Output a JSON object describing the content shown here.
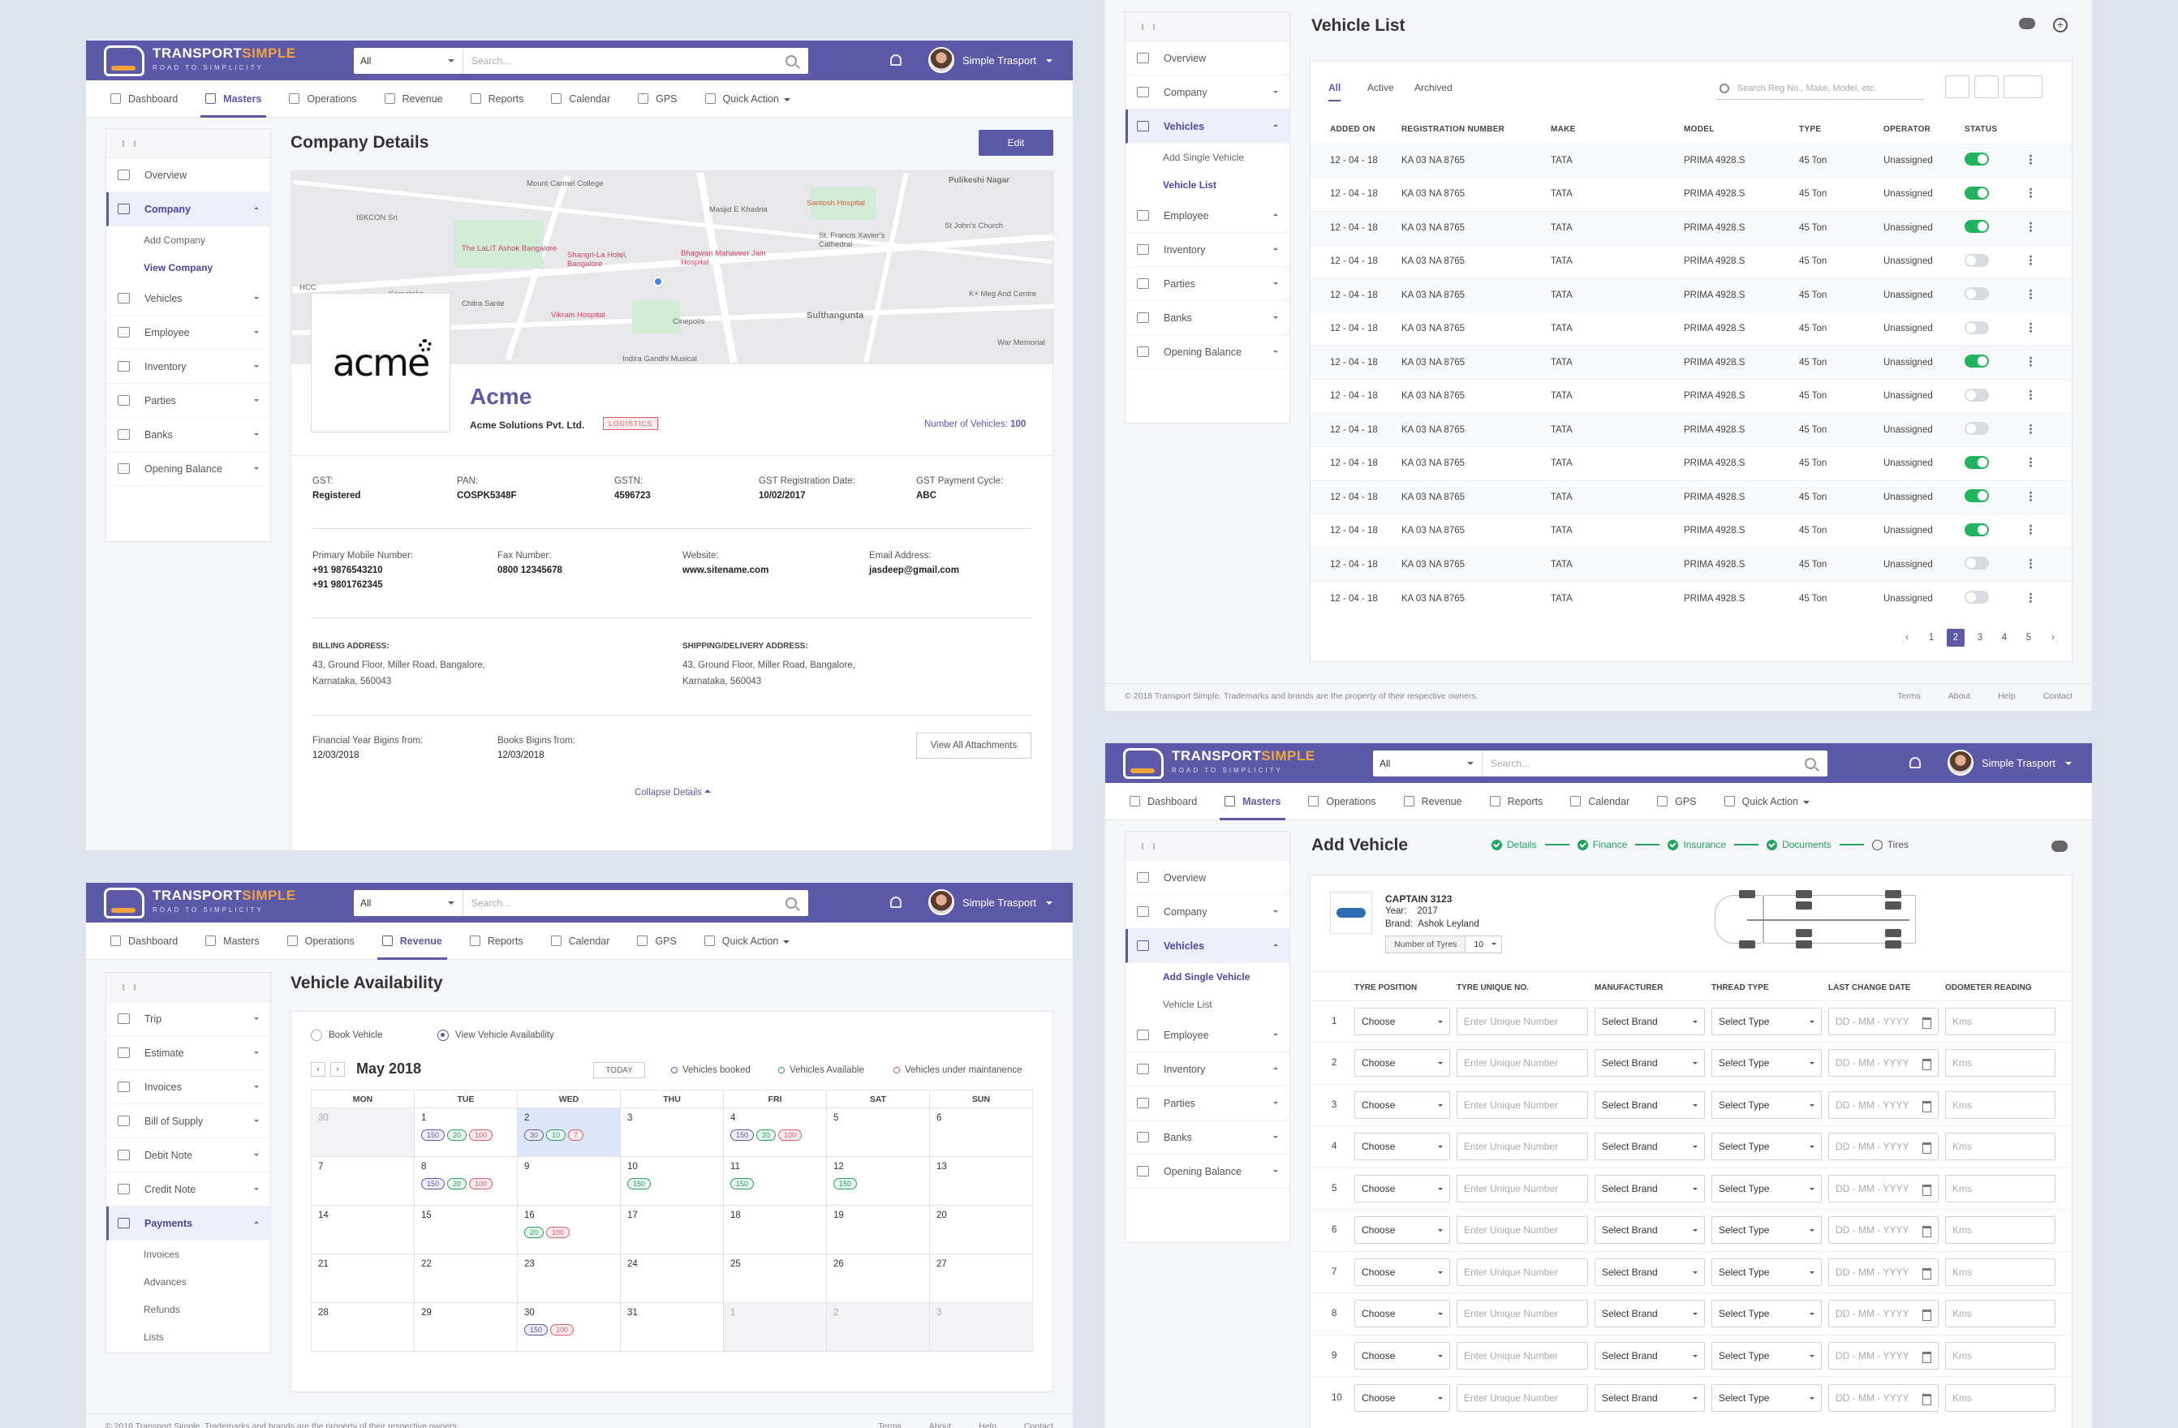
{
  "brand": {
    "name1": "TRANSPORT",
    "name2": "SIMPLE",
    "tagline": "ROAD TO SIMPLICITY"
  },
  "header": {
    "search_select": "All",
    "search_placeholder": "Search...",
    "user": "Simple Trasport"
  },
  "nav": {
    "dashboard": "Dashboard",
    "masters": "Masters",
    "operations": "Operations",
    "revenue": "Revenue",
    "reports": "Reports",
    "calendar": "Calendar",
    "gps": "GPS",
    "quick_action": "Quick Action"
  },
  "masters_sidebar": {
    "overview": "Overview",
    "company": "Company",
    "add_company": "Add Company",
    "view_company": "View Company",
    "vehicles": "Vehicles",
    "add_single_vehicle": "Add Single Vehicle",
    "vehicle_list": "Vehicle List",
    "employee": "Employee",
    "inventory": "Inventory",
    "parties": "Parties",
    "banks": "Banks",
    "opening_balance": "Opening Balance"
  },
  "company": {
    "title": "Company Details",
    "edit": "Edit",
    "logo_text": "acme",
    "name": "Acme",
    "legal_name": "Acme Solutions Pvt. Ltd.",
    "tag": "LOGISTICS",
    "vehicles_label": "Number of Vehicles:",
    "vehicles_value": "100",
    "gst_label": "GST:",
    "gst": "Registered",
    "pan_label": "PAN:",
    "pan": "COSPK5348F",
    "gstn_label": "GSTN:",
    "gstn": "4596723",
    "gst_reg_label": "GST Registration Date:",
    "gst_reg": "10/02/2017",
    "gst_cycle_label": "GST Payment Cycle:",
    "gst_cycle": "ABC",
    "mobile_label": "Primary Mobile Number:",
    "mobile1": "+91 9876543210",
    "mobile2": "+91 9801762345",
    "fax_label": "Fax Number:",
    "fax": "0800 12345678",
    "web_label": "Website:",
    "web": "www.sitename.com",
    "email_label": "Email Address:",
    "email": "jasdeep@gmail.com",
    "billing_label": "BILLING ADDRESS:",
    "billing1": "43, Ground Floor, Miller Road, Bangalore,",
    "billing2": "Karnataka, 560043",
    "shipping_label": "SHIPPING/DELIVERY ADDRESS:",
    "shipping1": "43, Ground Floor, Miller Road, Bangalore,",
    "shipping2": "Karnataka, 560043",
    "fy_label": "Financial Year Bigins from:",
    "fy": "12/03/2018",
    "books_label": "Books Bigins from:",
    "books": "12/03/2018",
    "attachments": "View All Attachments",
    "collapse": "Collapse Details",
    "map_labels": [
      "Pulikeshi Nagar",
      "Masjid E Khadria",
      "Santosh Hospital",
      "Mount Carmel College",
      "ISKCON Sri",
      "The LaLiT Ashok Bangalore",
      "Shangri-La Hotel, Bangalore",
      "Bhagwan Mahaveer Jain Hospital",
      "St. Francis Xavier's Cathedral",
      "St John's Church",
      "Karnataka",
      "Chitra Sante",
      "Vikram Hospital",
      "Cinepolis",
      "Sulthangunta",
      "K+ Meg And Centre",
      "War Memorial",
      "Indira Gandhi Musical",
      "HCC"
    ]
  },
  "vehicle_list": {
    "title": "Vehicle List",
    "tabs": [
      "All",
      "Active",
      "Archived"
    ],
    "search_placeholder": "Search Reg No., Make, Model, etc.",
    "columns": [
      "ADDED ON",
      "REGISTRATION NUMBER",
      "MAKE",
      "MODEL",
      "TYPE",
      "OPERATOR",
      "STATUS"
    ],
    "rows": [
      {
        "date": "12 - 04 - 18",
        "reg": "KA 03 NA 8765",
        "make": "TATA",
        "model": "PRIMA 4928.S",
        "type": "45 Ton",
        "op": "Unassigned",
        "on": true
      },
      {
        "date": "12 - 04 - 18",
        "reg": "KA 03 NA 8765",
        "make": "TATA",
        "model": "PRIMA 4928.S",
        "type": "45 Ton",
        "op": "Unassigned",
        "on": true
      },
      {
        "date": "12 - 04 - 18",
        "reg": "KA 03 NA 8765",
        "make": "TATA",
        "model": "PRIMA 4928.S",
        "type": "45 Ton",
        "op": "Unassigned",
        "on": true
      },
      {
        "date": "12 - 04 - 18",
        "reg": "KA 03 NA 8765",
        "make": "TATA",
        "model": "PRIMA 4928.S",
        "type": "45 Ton",
        "op": "Unassigned",
        "on": false
      },
      {
        "date": "12 - 04 - 18",
        "reg": "KA 03 NA 8765",
        "make": "TATA",
        "model": "PRIMA 4928.S",
        "type": "45 Ton",
        "op": "Unassigned",
        "on": false
      },
      {
        "date": "12 - 04 - 18",
        "reg": "KA 03 NA 8765",
        "make": "TATA",
        "model": "PRIMA 4928.S",
        "type": "45 Ton",
        "op": "Unassigned",
        "on": false
      },
      {
        "date": "12 - 04 - 18",
        "reg": "KA 03 NA 8765",
        "make": "TATA",
        "model": "PRIMA 4928.S",
        "type": "45 Ton",
        "op": "Unassigned",
        "on": true
      },
      {
        "date": "12 - 04 - 18",
        "reg": "KA 03 NA 8765",
        "make": "TATA",
        "model": "PRIMA 4928.S",
        "type": "45 Ton",
        "op": "Unassigned",
        "on": false
      },
      {
        "date": "12 - 04 - 18",
        "reg": "KA 03 NA 8765",
        "make": "TATA",
        "model": "PRIMA 4928.S",
        "type": "45 Ton",
        "op": "Unassigned",
        "on": false
      },
      {
        "date": "12 - 04 - 18",
        "reg": "KA 03 NA 8765",
        "make": "TATA",
        "model": "PRIMA 4928.S",
        "type": "45 Ton",
        "op": "Unassigned",
        "on": true
      },
      {
        "date": "12 - 04 - 18",
        "reg": "KA 03 NA 8765",
        "make": "TATA",
        "model": "PRIMA 4928.S",
        "type": "45 Ton",
        "op": "Unassigned",
        "on": true
      },
      {
        "date": "12 - 04 - 18",
        "reg": "KA 03 NA 8765",
        "make": "TATA",
        "model": "PRIMA 4928.S",
        "type": "45 Ton",
        "op": "Unassigned",
        "on": true
      },
      {
        "date": "12 - 04 - 18",
        "reg": "KA 03 NA 8765",
        "make": "TATA",
        "model": "PRIMA 4928.S",
        "type": "45 Ton",
        "op": "Unassigned",
        "on": false
      },
      {
        "date": "12 - 04 - 18",
        "reg": "KA 03 NA 8765",
        "make": "TATA",
        "model": "PRIMA 4928.S",
        "type": "45 Ton",
        "op": "Unassigned",
        "on": false
      }
    ],
    "pages": [
      "‹",
      "1",
      "2",
      "3",
      "4",
      "5",
      "›"
    ],
    "current_page": "2"
  },
  "footer": {
    "copyright": "© 2018 Transport Simple. Trademarks and brands are the property of their respective owners.",
    "links": [
      "Terms",
      "About",
      "Help",
      "Contact"
    ]
  },
  "revenue_sidebar": {
    "trip": "Trip",
    "estimate": "Estimate",
    "invoices": "Invoices",
    "bill_of_supply": "Bill of Supply",
    "debit_note": "Debit Note",
    "credit_note": "Credit Note",
    "payments": "Payments",
    "sub_invoices": "Invoices",
    "advances": "Advances",
    "refunds": "Refunds",
    "lists": "Lists"
  },
  "availability": {
    "title": "Vehicle Availability",
    "book": "Book Vehicle",
    "view": "View Vehicle Availability",
    "month": "May 2018",
    "today": "TODAY",
    "legend_booked": "Vehicles booked",
    "legend_available": "Vehicles Available",
    "legend_maint": "Vehicles under maintanence",
    "weekdays": [
      "MON",
      "TUE",
      "WED",
      "THU",
      "FRI",
      "SAT",
      "SUN"
    ],
    "weeks": [
      [
        {
          "d": "30",
          "o": true
        },
        {
          "d": "1",
          "p": [
            "150",
            "20",
            "100"
          ]
        },
        {
          "d": "2",
          "t": true,
          "p": [
            "30",
            "10",
            "7"
          ]
        },
        {
          "d": "3"
        },
        {
          "d": "4",
          "p": [
            "150",
            "20",
            "100"
          ]
        },
        {
          "d": "5"
        },
        {
          "d": "6"
        }
      ],
      [
        {
          "d": "7"
        },
        {
          "d": "8",
          "p": [
            "150",
            "20",
            "100"
          ]
        },
        {
          "d": "9"
        },
        {
          "d": "10",
          "p": [
            "",
            "150",
            ""
          ]
        },
        {
          "d": "11",
          "p": [
            "",
            "150",
            ""
          ]
        },
        {
          "d": "12",
          "p": [
            "",
            "150",
            ""
          ]
        },
        {
          "d": "13"
        }
      ],
      [
        {
          "d": "14"
        },
        {
          "d": "15"
        },
        {
          "d": "16",
          "p": [
            "",
            "20",
            "100"
          ]
        },
        {
          "d": "17"
        },
        {
          "d": "18"
        },
        {
          "d": "19"
        },
        {
          "d": "20"
        }
      ],
      [
        {
          "d": "21"
        },
        {
          "d": "22"
        },
        {
          "d": "23"
        },
        {
          "d": "24"
        },
        {
          "d": "25"
        },
        {
          "d": "26"
        },
        {
          "d": "27"
        }
      ],
      [
        {
          "d": "28"
        },
        {
          "d": "29"
        },
        {
          "d": "30",
          "p": [
            "150",
            "",
            "100"
          ]
        },
        {
          "d": "31"
        },
        {
          "d": "1",
          "o": true
        },
        {
          "d": "2",
          "o": true
        },
        {
          "d": "3",
          "o": true
        }
      ]
    ]
  },
  "add_vehicle": {
    "title": "Add Vehicle",
    "steps": [
      "Details",
      "Finance",
      "Insurance",
      "Documents",
      "Tires"
    ],
    "vehicle_name": "CAPTAIN 3123",
    "year_label": "Year:",
    "year": "2017",
    "brand_label": "Brand:",
    "brand": "Ashok Leyland",
    "tyres_label": "Number of Tyres",
    "tyres": "10",
    "columns": [
      "TYRE POSITION",
      "TYRE UNIQUE NO.",
      "MANUFACTURER",
      "THREAD TYPE",
      "LAST CHANGE DATE",
      "ODOMETER READING"
    ],
    "choose": "Choose",
    "unique_ph": "Enter Unique Number",
    "brand_sel": "Select Brand",
    "type_sel": "Select Type",
    "date_ph": "DD - MM - YYYY",
    "kms_ph": "Kms",
    "row_numbers": [
      "1",
      "2",
      "3",
      "4",
      "5",
      "6",
      "7",
      "8",
      "9",
      "10"
    ]
  }
}
